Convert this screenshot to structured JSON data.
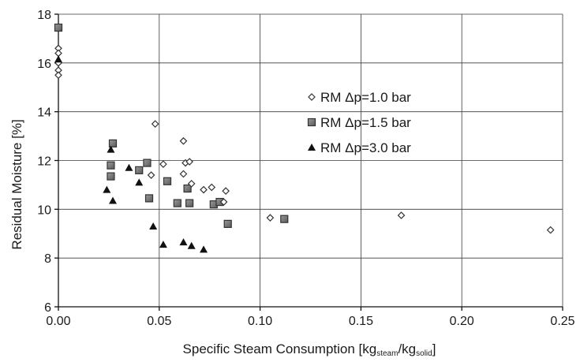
{
  "chart_data": {
    "type": "scatter",
    "xlabel": "Specific Steam Consumption [kg",
    "xlabel_sub1": "steam",
    "xlabel_mid": "/kg",
    "xlabel_sub2": "solid",
    "xlabel_end": "]",
    "ylabel": "Residual Moisture [%]",
    "xlim": [
      0,
      0.25
    ],
    "ylim": [
      6,
      18
    ],
    "x_ticks": [
      0.0,
      0.05,
      0.1,
      0.15,
      0.2,
      0.25
    ],
    "x_tick_labels": [
      "0.00",
      "0.05",
      "0.10",
      "0.15",
      "0.20",
      "0.25"
    ],
    "y_ticks": [
      6,
      8,
      10,
      12,
      14,
      16,
      18
    ],
    "y_tick_labels": [
      "6",
      "8",
      "10",
      "12",
      "14",
      "16",
      "18"
    ],
    "grid": true,
    "legend_position": "right",
    "series": [
      {
        "name": "RM Δp=1.0 bar",
        "marker": "diamond",
        "points": [
          [
            0.0,
            16.6
          ],
          [
            0.0,
            16.4
          ],
          [
            0.0,
            16.0
          ],
          [
            0.0,
            15.7
          ],
          [
            0.0,
            15.5
          ],
          [
            0.048,
            13.5
          ],
          [
            0.062,
            12.8
          ],
          [
            0.052,
            11.85
          ],
          [
            0.063,
            11.9
          ],
          [
            0.065,
            11.95
          ],
          [
            0.046,
            11.4
          ],
          [
            0.062,
            11.45
          ],
          [
            0.066,
            11.05
          ],
          [
            0.072,
            10.8
          ],
          [
            0.076,
            10.9
          ],
          [
            0.083,
            10.75
          ],
          [
            0.082,
            10.3
          ],
          [
            0.105,
            9.65
          ],
          [
            0.17,
            9.75
          ],
          [
            0.244,
            9.15
          ]
        ]
      },
      {
        "name": "RM Δp=1.5 bar",
        "marker": "square",
        "points": [
          [
            0.0,
            17.45
          ],
          [
            0.027,
            12.7
          ],
          [
            0.026,
            11.8
          ],
          [
            0.044,
            11.9
          ],
          [
            0.04,
            11.6
          ],
          [
            0.026,
            11.35
          ],
          [
            0.054,
            11.15
          ],
          [
            0.064,
            10.85
          ],
          [
            0.045,
            10.45
          ],
          [
            0.059,
            10.25
          ],
          [
            0.065,
            10.25
          ],
          [
            0.077,
            10.2
          ],
          [
            0.08,
            10.3
          ],
          [
            0.084,
            9.4
          ],
          [
            0.112,
            9.6
          ]
        ]
      },
      {
        "name": "RM Δp=3.0 bar",
        "marker": "triangle",
        "points": [
          [
            0.0,
            16.15
          ],
          [
            0.026,
            12.45
          ],
          [
            0.035,
            11.7
          ],
          [
            0.04,
            11.1
          ],
          [
            0.024,
            10.8
          ],
          [
            0.027,
            10.35
          ],
          [
            0.047,
            9.3
          ],
          [
            0.052,
            8.55
          ],
          [
            0.062,
            8.65
          ],
          [
            0.066,
            8.5
          ],
          [
            0.072,
            8.35
          ]
        ]
      }
    ]
  }
}
